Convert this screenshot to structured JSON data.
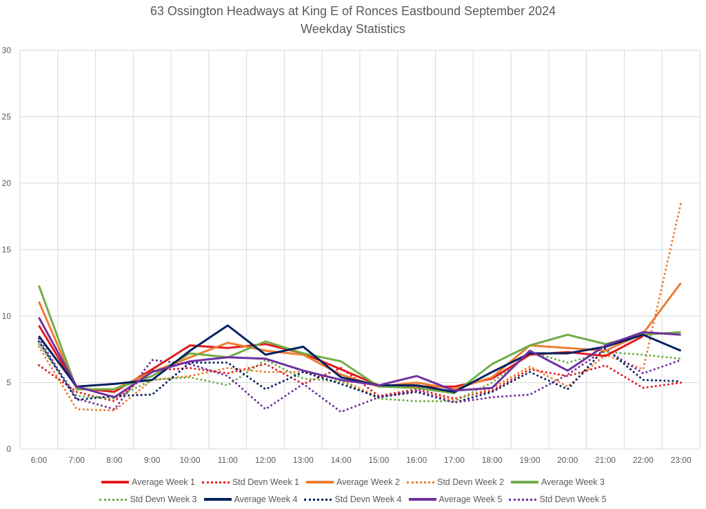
{
  "chart_data": {
    "type": "line",
    "title": "63 Ossington Headways at King E of Ronces Eastbound September 2024",
    "subtitle": "Weekday Statistics",
    "xlabel": "",
    "ylabel": "",
    "ylim": [
      0,
      30
    ],
    "yticks": [
      "0",
      "5",
      "10",
      "15",
      "20",
      "25",
      "30"
    ],
    "grid": true,
    "legend_position": "bottom",
    "categories": [
      "6:00",
      "7:00",
      "8:00",
      "9:00",
      "10:00",
      "11:00",
      "12:00",
      "13:00",
      "14:00",
      "15:00",
      "16:00",
      "17:00",
      "18:00",
      "19:00",
      "20:00",
      "21:00",
      "22:00",
      "23:00"
    ],
    "series": [
      {
        "name": "Average Week 1",
        "color": "#e31a1c",
        "style": "solid",
        "values": [
          9.3,
          4.6,
          4.3,
          6.0,
          7.8,
          7.6,
          7.9,
          7.2,
          6.0,
          4.8,
          4.7,
          4.7,
          5.3,
          7.1,
          7.3,
          7.0,
          8.5,
          null
        ]
      },
      {
        "name": "Std Devn Week 1",
        "color": "#e31a1c",
        "style": "dotted",
        "values": [
          6.3,
          4.3,
          3.6,
          5.9,
          6.1,
          5.7,
          6.4,
          4.9,
          6.1,
          4.0,
          4.5,
          3.8,
          4.4,
          6.0,
          5.5,
          6.3,
          4.6,
          5.0
        ]
      },
      {
        "name": "Average Week 2",
        "color": "#ed7d31",
        "style": "solid",
        "values": [
          11.1,
          4.5,
          4.5,
          5.8,
          6.9,
          8.0,
          7.4,
          7.1,
          5.6,
          4.7,
          5.0,
          4.5,
          5.4,
          7.8,
          7.6,
          7.4,
          8.7,
          12.5
        ]
      },
      {
        "name": "Std Devn Week 2",
        "color": "#ed7d31",
        "style": "dotted",
        "values": [
          7.7,
          3.0,
          2.9,
          5.2,
          5.5,
          6.1,
          5.8,
          5.8,
          5.2,
          3.9,
          4.3,
          3.7,
          4.6,
          6.2,
          4.7,
          7.1,
          6.0,
          18.5
        ]
      },
      {
        "name": "Average Week 3",
        "color": "#70ad47",
        "style": "solid",
        "values": [
          12.3,
          4.5,
          4.5,
          5.5,
          7.2,
          6.9,
          8.1,
          7.2,
          6.6,
          4.7,
          4.6,
          4.2,
          6.4,
          7.8,
          8.6,
          7.9,
          8.6,
          8.8
        ]
      },
      {
        "name": "Std Devn Week 3",
        "color": "#70ad47",
        "style": "dotted",
        "values": [
          7.9,
          4.0,
          3.8,
          5.2,
          5.4,
          4.8,
          6.7,
          5.3,
          5.1,
          3.8,
          3.6,
          3.6,
          5.0,
          7.3,
          6.5,
          7.3,
          7.1,
          6.8
        ]
      },
      {
        "name": "Average Week 4",
        "color": "#002060",
        "style": "solid",
        "values": [
          8.5,
          4.7,
          4.9,
          5.2,
          7.4,
          9.3,
          7.1,
          7.7,
          5.4,
          4.8,
          4.8,
          4.3,
          5.8,
          7.2,
          7.2,
          7.7,
          8.6,
          7.4
        ]
      },
      {
        "name": "Std Devn Week 4",
        "color": "#002060",
        "style": "dotted",
        "values": [
          8.1,
          3.7,
          4.0,
          4.1,
          6.5,
          6.5,
          4.5,
          5.8,
          4.9,
          3.9,
          4.3,
          3.5,
          4.3,
          5.8,
          4.5,
          7.6,
          5.2,
          5.1
        ]
      },
      {
        "name": "Average Week 5",
        "color": "#7030a0",
        "style": "solid",
        "values": [
          9.9,
          4.7,
          3.9,
          5.8,
          6.6,
          6.9,
          6.8,
          5.9,
          5.2,
          4.8,
          5.5,
          4.4,
          4.6,
          7.4,
          5.9,
          7.8,
          8.8,
          8.6
        ]
      },
      {
        "name": "Std Devn Week 5",
        "color": "#7030a0",
        "style": "dotted",
        "values": [
          8.3,
          3.8,
          3.0,
          6.7,
          6.4,
          5.5,
          3.0,
          4.9,
          2.8,
          3.9,
          4.4,
          3.5,
          3.9,
          4.1,
          5.6,
          7.5,
          5.7,
          6.7
        ]
      }
    ]
  }
}
